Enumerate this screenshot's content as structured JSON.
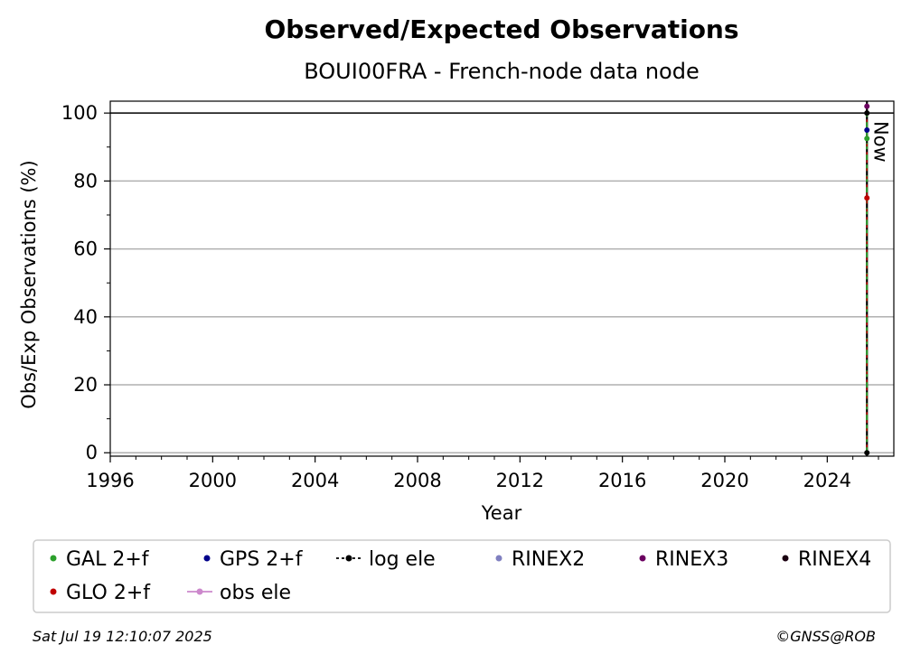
{
  "chart_data": {
    "type": "line",
    "title": "Observed/Expected Observations",
    "subtitle": "BOUI00FRA - French-node data node",
    "xlabel": "Year",
    "ylabel": "Obs/Exp Observations (%)",
    "xlim": [
      1996,
      2026.6
    ],
    "ylim": [
      -1,
      103.5
    ],
    "x_ticks": [
      1996,
      2000,
      2004,
      2008,
      2012,
      2016,
      2020,
      2024
    ],
    "y_ticks": [
      0,
      20,
      40,
      60,
      80,
      100
    ],
    "grid": "horizontal",
    "reference_line": 100,
    "now_label": "Now",
    "now_year": 2025.55,
    "series": [
      {
        "name": "GAL 2+f",
        "color": "#2ca02c",
        "marker": "dot",
        "x": [
          2025.55
        ],
        "y": [
          92.5
        ]
      },
      {
        "name": "GPS 2+f",
        "color": "#00008b",
        "marker": "dot",
        "x": [
          2025.55
        ],
        "y": [
          95
        ]
      },
      {
        "name": "log ele",
        "color": "#000000",
        "marker": "line-dot",
        "x": [
          2025.55,
          2025.55
        ],
        "y": [
          0,
          100
        ]
      },
      {
        "name": "RINEX2",
        "color": "#8080c0",
        "marker": "dot",
        "x": [],
        "y": []
      },
      {
        "name": "RINEX3",
        "color": "#6b0060",
        "marker": "dot",
        "x": [
          2025.55
        ],
        "y": [
          102
        ]
      },
      {
        "name": "RINEX4",
        "color": "#1a0010",
        "marker": "dot",
        "x": [],
        "y": []
      },
      {
        "name": "GLO 2+f",
        "color": "#c00000",
        "marker": "dot",
        "x": [
          2025.55
        ],
        "y": [
          75
        ]
      },
      {
        "name": "obs ele",
        "color": "#cc88cc",
        "marker": "line-dot",
        "x": [],
        "y": []
      }
    ],
    "legend_placement": "bottom"
  },
  "footer": {
    "timestamp": "Sat Jul 19 12:10:07 2025",
    "credit": "©GNSS@ROB"
  }
}
